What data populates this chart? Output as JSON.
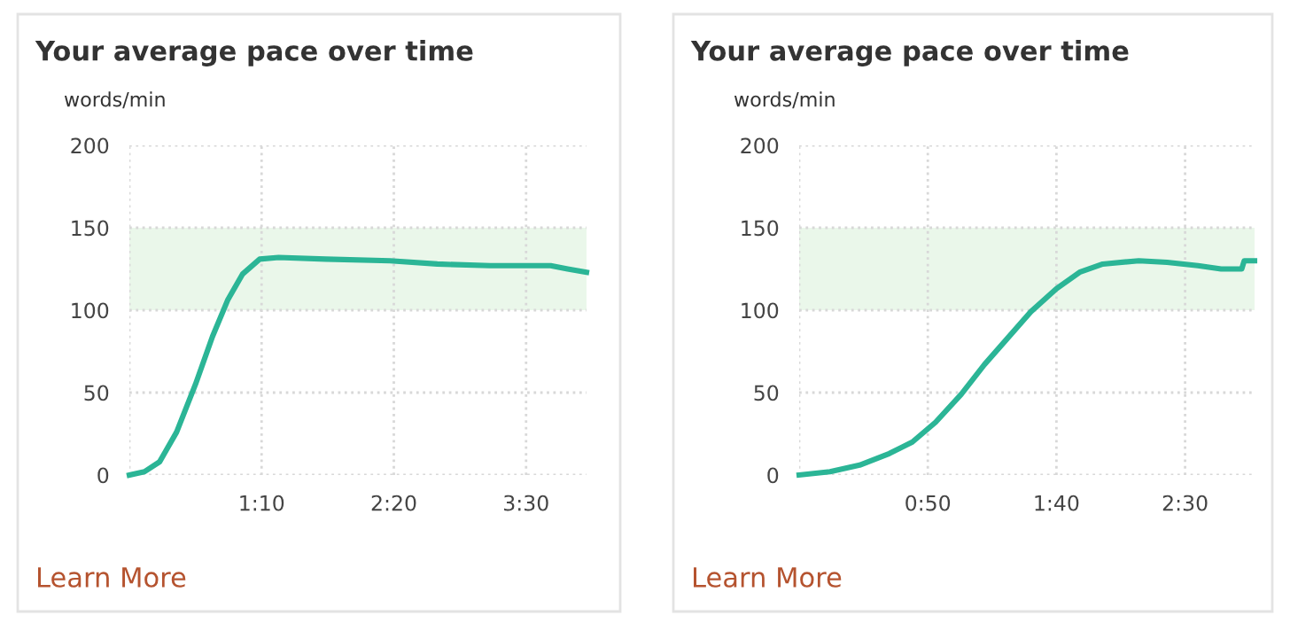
{
  "chart_data": [
    {
      "type": "line",
      "title": "Your average pace over time",
      "ylabel": "words/min",
      "annotations": [
        "Learn More"
      ],
      "x": [
        0,
        8,
        16,
        25,
        35,
        44,
        52,
        60,
        69,
        79,
        104,
        138,
        163,
        191,
        223,
        232,
        242
      ],
      "series": [
        {
          "color": "#2bb596",
          "values": [
            0,
            2,
            8,
            26,
            55,
            84,
            106,
            122,
            131,
            132,
            131,
            130,
            128,
            127,
            127,
            125,
            123
          ]
        }
      ],
      "xlim": [
        0,
        242
      ],
      "xticks": [
        {
          "value": 0,
          "label": null
        },
        {
          "value": 70,
          "label": "1:10"
        },
        {
          "value": 140,
          "label": "2:20"
        },
        {
          "value": 210,
          "label": "3:30"
        }
      ],
      "ylim": [
        0,
        200
      ],
      "yticks": [
        0,
        50,
        100,
        150,
        200
      ],
      "bands": [
        {
          "axis": "y",
          "from": 100,
          "to": 150,
          "color": "#eaf7ea"
        }
      ],
      "grid": true,
      "marker": "none",
      "line_style": "solid",
      "legend": false
    },
    {
      "type": "line",
      "title": "Your average pace over time",
      "ylabel": "words/min",
      "annotations": [
        "Learn More"
      ],
      "x": [
        0,
        12,
        23.5,
        35,
        44,
        53,
        63,
        72,
        81,
        90,
        100,
        109,
        118,
        132,
        143,
        155,
        164,
        172,
        173,
        177
      ],
      "series": [
        {
          "color": "#2bb596",
          "values": [
            0,
            2,
            6,
            13,
            20,
            32,
            49,
            67,
            83,
            99,
            113,
            123,
            128,
            130,
            129,
            127,
            125,
            125,
            130,
            130
          ]
        }
      ],
      "xlim": [
        0,
        177
      ],
      "xticks": [
        {
          "value": 0,
          "label": null
        },
        {
          "value": 50,
          "label": "0:50"
        },
        {
          "value": 100,
          "label": "1:40"
        },
        {
          "value": 150,
          "label": "2:30"
        }
      ],
      "ylim": [
        0,
        200
      ],
      "yticks": [
        0,
        50,
        100,
        150,
        200
      ],
      "bands": [
        {
          "axis": "y",
          "from": 100,
          "to": 150,
          "color": "#eaf7ea"
        }
      ],
      "grid": true,
      "marker": "none",
      "line_style": "solid",
      "legend": false
    }
  ]
}
